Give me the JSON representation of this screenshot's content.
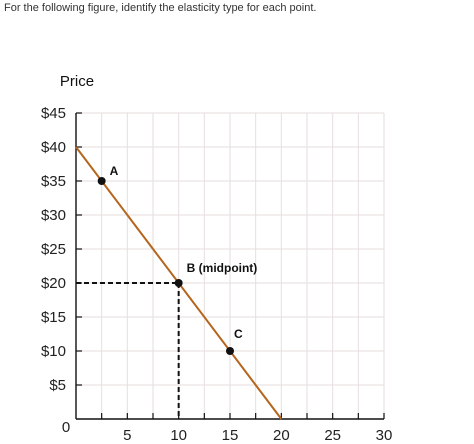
{
  "question": "For the following figure, identify the elasticity type for each point.",
  "chart_data": {
    "type": "line",
    "title": "",
    "ylabel": "Price",
    "xlabel": "",
    "xlim": [
      0,
      30
    ],
    "ylim": [
      0,
      45
    ],
    "x_ticks": [
      5,
      10,
      15,
      20,
      25,
      30
    ],
    "x_tick_labels": [
      "5",
      "10",
      "15",
      "20",
      "25",
      "30"
    ],
    "y_ticks": [
      5,
      10,
      15,
      20,
      25,
      30,
      35,
      40,
      45
    ],
    "y_tick_labels": [
      "$5",
      "$10",
      "$15",
      "$20",
      "$25",
      "$30",
      "$35",
      "$40",
      "$45"
    ],
    "origin_label": "0",
    "grid": true,
    "series": [
      {
        "color": "#b5651d",
        "x": [
          0,
          20
        ],
        "y": [
          40,
          0
        ]
      }
    ],
    "points": [
      {
        "label": "A",
        "x": 2.5,
        "y": 35
      },
      {
        "label": "B (midpoint)",
        "x": 10,
        "y": 20
      },
      {
        "label": "C",
        "x": 15,
        "y": 10
      }
    ],
    "guides": {
      "x": 10,
      "y": 20
    }
  }
}
